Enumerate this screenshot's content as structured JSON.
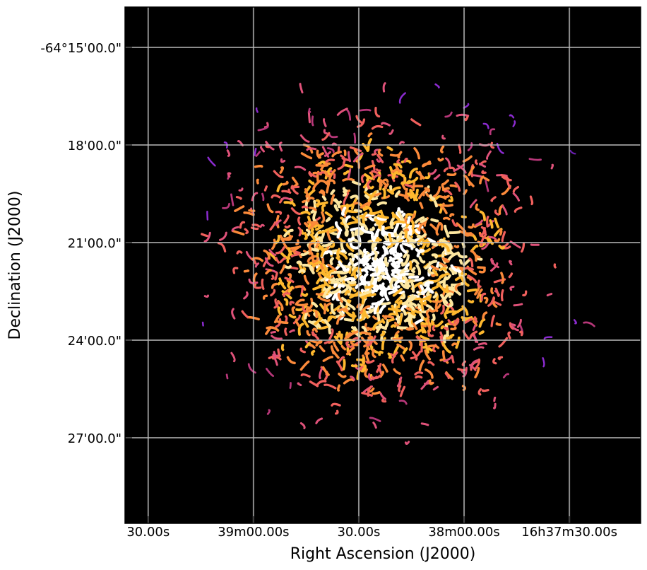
{
  "chart_data": {
    "type": "image",
    "xlabel": "Right Ascension (J2000)",
    "ylabel": "Declination (J2000)",
    "xlim": [
      59976.6,
      59829.7
    ],
    "ylim": [
      -3869.63,
      -3853.76
    ],
    "xticks": [
      {
        "value": 59970,
        "label": "30.00s"
      },
      {
        "value": 59940,
        "label": "39m00.00s"
      },
      {
        "value": 59910,
        "label": "30.00s"
      },
      {
        "value": 59880,
        "label": "38m00.00s"
      },
      {
        "value": 59850,
        "label": "16h37m30.00s"
      }
    ],
    "yticks": [
      {
        "value": -3855,
        "label": "-64°15'00.0\""
      },
      {
        "value": -3858,
        "label": "18'00.0\""
      },
      {
        "value": -3861,
        "label": "21'00.0\""
      },
      {
        "value": -3864,
        "label": "24'00.0\""
      },
      {
        "value": -3867,
        "label": "27'00.0\""
      }
    ],
    "grid": true
  }
}
